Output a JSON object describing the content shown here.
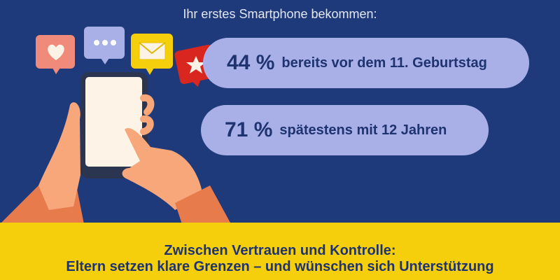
{
  "title": "Ihr erstes Smartphone bekommen:",
  "stats": [
    {
      "value": "44 %",
      "label": "bereits vor dem 11. Geburtstag"
    },
    {
      "value": "71 %",
      "label": "spätestens mit 12 Jahren"
    }
  ],
  "footer": {
    "line1": "Zwischen Vertrauen und Kontrolle:",
    "line2": "Eltern setzen klare Grenzen – und wünschen sich Unterstützung"
  },
  "icons": [
    "heart-icon",
    "chat-dots-icon",
    "envelope-icon",
    "star-icon",
    "smartphone-icon"
  ]
}
